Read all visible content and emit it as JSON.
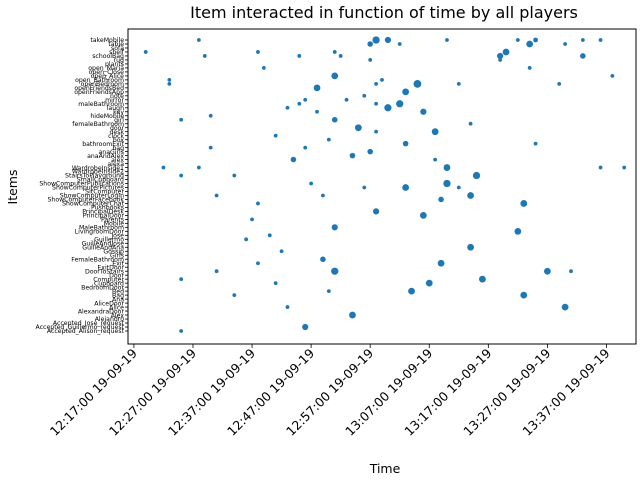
{
  "chart_data": {
    "type": "scatter",
    "title": "Item interacted in function of time by all players",
    "xlabel": "Time",
    "ylabel": "Items",
    "x_ticks": [
      "12:17:00 19-09-19",
      "12:27:00 19-09-19",
      "12:37:00 19-09-19",
      "12:47:00 19-09-19",
      "12:57:00 19-09-19",
      "13:07:00 19-09-19",
      "13:17:00 19-09-19",
      "13:27:00 19-09-19",
      "13:37:00 19-09-19"
    ],
    "xlim": [
      "12:16:00 19-09-19",
      "13:42:00 19-09-19"
    ],
    "grid": false,
    "categories": [
      "takeMobile",
      "table",
      "sofa",
      "shelf",
      "schoolBag",
      "rug",
      "plants",
      "open_Maria",
      "open_Close",
      "open_Alice",
      "open_Bathroom",
      "openBedroom",
      "openFriendsBed",
      "openFriendsApp",
      "note",
      "mirror",
      "maleBathroom",
      "laugh",
      "key",
      "hideMobile",
      "girl",
      "femaleBathroom",
      "door",
      "desk",
      "clock",
      "box",
      "bathroomExit",
      "bag",
      "anaGirls",
      "anaAndAlex",
      "alex",
      "alexa",
      "WardrobeInside1",
      "WardrobeInside2",
      "StairsToPlayground",
      "SmallCupboard",
      "ShowComputerPublications",
      "ShowComputerPictures",
      "SitComputer",
      "ShowComputerLogIn",
      "ShowComputerFacebook",
      "ShowComputerChat",
      "Pushbooks",
      "PrincipalDesk",
      "PrincipalDoor",
      "Parents",
      "Mobile",
      "MaleBathroom",
      "LivingroomDoor",
      "Jose",
      "Guillermo",
      "GuilleAndJose",
      "GuilleAndAna",
      "Gossip",
      "Girls",
      "FemaleBathroom",
      "Exit",
      "ExitDoor",
      "DoorToStairs",
      "Door",
      "Computer",
      "Cupboard",
      "BedroomDoor",
      "Bed",
      "Bag",
      "Ana",
      "AliceDoor",
      "Alice",
      "AlexandraDoor",
      "Alex",
      "Alejandro",
      "Accepted_Jose_request",
      "Accepted_Guillermo_request",
      "Accepted_Alison_request"
    ],
    "points": [
      {
        "time": "12:58:00 19-09-19",
        "item": "takeMobile",
        "count": 6
      },
      {
        "time": "13:00:00 19-09-19",
        "item": "takeMobile",
        "count": 4
      },
      {
        "time": "12:28:00 19-09-19",
        "item": "takeMobile",
        "count": 1
      },
      {
        "time": "13:10:00 19-09-19",
        "item": "takeMobile",
        "count": 1
      },
      {
        "time": "13:22:00 19-09-19",
        "item": "takeMobile",
        "count": 1
      },
      {
        "time": "13:25:00 19-09-19",
        "item": "takeMobile",
        "count": 2
      },
      {
        "time": "13:33:00 19-09-19",
        "item": "takeMobile",
        "count": 1
      },
      {
        "time": "13:36:00 19-09-19",
        "item": "takeMobile",
        "count": 1
      },
      {
        "time": "12:57:00 19-09-19",
        "item": "table",
        "count": 3
      },
      {
        "time": "13:24:00 19-09-19",
        "item": "table",
        "count": 5
      },
      {
        "time": "13:02:00 19-09-19",
        "item": "table",
        "count": 1
      },
      {
        "time": "13:30:00 19-09-19",
        "item": "table",
        "count": 1
      },
      {
        "time": "12:51:00 19-09-19",
        "item": "shelf",
        "count": 1
      },
      {
        "time": "12:19:00 19-09-19",
        "item": "shelf",
        "count": 1
      },
      {
        "time": "12:38:00 19-09-19",
        "item": "shelf",
        "count": 1
      },
      {
        "time": "13:20:00 19-09-19",
        "item": "shelf",
        "count": 5
      },
      {
        "time": "12:45:00 19-09-19",
        "item": "schoolBag",
        "count": 1
      },
      {
        "time": "13:19:00 19-09-19",
        "item": "schoolBag",
        "count": 4
      },
      {
        "time": "13:33:00 19-09-19",
        "item": "schoolBag",
        "count": 3
      },
      {
        "time": "12:52:00 19-09-19",
        "item": "schoolBag",
        "count": 1
      },
      {
        "time": "12:29:00 19-09-19",
        "item": "schoolBag",
        "count": 1
      },
      {
        "time": "12:57:00 19-09-19",
        "item": "rug",
        "count": 1
      },
      {
        "time": "13:19:00 19-09-19",
        "item": "rug",
        "count": 1
      },
      {
        "time": "12:39:00 19-09-19",
        "item": "open_Maria",
        "count": 1
      },
      {
        "time": "13:24:00 19-09-19",
        "item": "open_Maria",
        "count": 1
      },
      {
        "time": "12:51:00 19-09-19",
        "item": "open_Alice",
        "count": 5
      },
      {
        "time": "13:38:00 19-09-19",
        "item": "open_Alice",
        "count": 1
      },
      {
        "time": "12:23:00 19-09-19",
        "item": "open_Bathroom",
        "count": 1
      },
      {
        "time": "12:59:00 19-09-19",
        "item": "open_Bathroom",
        "count": 1
      },
      {
        "time": "13:05:00 19-09-19",
        "item": "openBedroom",
        "count": 7
      },
      {
        "time": "12:23:00 19-09-19",
        "item": "openBedroom",
        "count": 1
      },
      {
        "time": "12:58:00 19-09-19",
        "item": "openBedroom",
        "count": 1
      },
      {
        "time": "13:12:00 19-09-19",
        "item": "openBedroom",
        "count": 1
      },
      {
        "time": "13:29:00 19-09-19",
        "item": "openBedroom",
        "count": 1
      },
      {
        "time": "12:48:00 19-09-19",
        "item": "openFriendsBed",
        "count": 5
      },
      {
        "time": "13:03:00 19-09-19",
        "item": "openFriendsApp",
        "count": 5
      },
      {
        "time": "12:56:00 19-09-19",
        "item": "note",
        "count": 1
      },
      {
        "time": "12:46:00 19-09-19",
        "item": "mirror",
        "count": 1
      },
      {
        "time": "12:53:00 19-09-19",
        "item": "mirror",
        "count": 1
      },
      {
        "time": "13:02:00 19-09-19",
        "item": "maleBathroom",
        "count": 6
      },
      {
        "time": "12:58:00 19-09-19",
        "item": "maleBathroom",
        "count": 1
      },
      {
        "time": "12:45:00 19-09-19",
        "item": "maleBathroom",
        "count": 1
      },
      {
        "time": "13:00:00 19-09-19",
        "item": "laugh",
        "count": 6
      },
      {
        "time": "12:43:00 19-09-19",
        "item": "laugh",
        "count": 1
      },
      {
        "time": "13:06:00 19-09-19",
        "item": "key",
        "count": 4
      },
      {
        "time": "12:48:00 19-09-19",
        "item": "key",
        "count": 1
      },
      {
        "time": "12:30:00 19-09-19",
        "item": "hideMobile",
        "count": 1
      },
      {
        "time": "12:51:00 19-09-19",
        "item": "girl",
        "count": 3
      },
      {
        "time": "12:25:00 19-09-19",
        "item": "girl",
        "count": 1
      },
      {
        "time": "13:14:00 19-09-19",
        "item": "femaleBathroom",
        "count": 1
      },
      {
        "time": "12:55:00 19-09-19",
        "item": "door",
        "count": 5
      },
      {
        "time": "13:08:00 19-09-19",
        "item": "desk",
        "count": 5
      },
      {
        "time": "12:58:00 19-09-19",
        "item": "desk",
        "count": 1
      },
      {
        "time": "12:41:00 19-09-19",
        "item": "clock",
        "count": 1
      },
      {
        "time": "12:50:00 19-09-19",
        "item": "box",
        "count": 1
      },
      {
        "time": "13:03:00 19-09-19",
        "item": "bathroomExit",
        "count": 3
      },
      {
        "time": "13:25:00 19-09-19",
        "item": "bathroomExit",
        "count": 1
      },
      {
        "time": "12:30:00 19-09-19",
        "item": "bag",
        "count": 1
      },
      {
        "time": "12:46:00 19-09-19",
        "item": "bag",
        "count": 1
      },
      {
        "time": "12:57:00 19-09-19",
        "item": "anaGirls",
        "count": 3
      },
      {
        "time": "12:54:00 19-09-19",
        "item": "anaAndAlex",
        "count": 3
      },
      {
        "time": "12:44:00 19-09-19",
        "item": "alex",
        "count": 3
      },
      {
        "time": "13:08:00 19-09-19",
        "item": "alex",
        "count": 1
      },
      {
        "time": "13:10:00 19-09-19",
        "item": "WardrobeInside1",
        "count": 5
      },
      {
        "time": "12:22:00 19-09-19",
        "item": "WardrobeInside1",
        "count": 1
      },
      {
        "time": "12:28:00 19-09-19",
        "item": "WardrobeInside1",
        "count": 1
      },
      {
        "time": "13:36:00 19-09-19",
        "item": "WardrobeInside1",
        "count": 1
      },
      {
        "time": "13:40:00 19-09-19",
        "item": "WardrobeInside1",
        "count": 1
      },
      {
        "time": "13:15:00 19-09-19",
        "item": "StairsToPlayground",
        "count": 6
      },
      {
        "time": "12:34:00 19-09-19",
        "item": "StairsToPlayground",
        "count": 1
      },
      {
        "time": "12:25:00 19-09-19",
        "item": "StairsToPlayground",
        "count": 1
      },
      {
        "time": "13:10:00 19-09-19",
        "item": "ShowComputerPublications",
        "count": 6
      },
      {
        "time": "12:47:00 19-09-19",
        "item": "ShowComputerPublications",
        "count": 1
      },
      {
        "time": "13:03:00 19-09-19",
        "item": "ShowComputerPictures",
        "count": 5
      },
      {
        "time": "12:56:00 19-09-19",
        "item": "ShowComputerPictures",
        "count": 1
      },
      {
        "time": "13:12:00 19-09-19",
        "item": "ShowComputerPictures",
        "count": 1
      },
      {
        "time": "13:14:00 19-09-19",
        "item": "ShowComputerLogIn",
        "count": 5
      },
      {
        "time": "12:31:00 19-09-19",
        "item": "ShowComputerLogIn",
        "count": 1
      },
      {
        "time": "12:49:00 19-09-19",
        "item": "ShowComputerLogIn",
        "count": 1
      },
      {
        "time": "13:09:00 19-09-19",
        "item": "ShowComputerFacebook",
        "count": 3
      },
      {
        "time": "13:23:00 19-09-19",
        "item": "ShowComputerChat",
        "count": 5
      },
      {
        "time": "12:38:00 19-09-19",
        "item": "ShowComputerChat",
        "count": 1
      },
      {
        "time": "12:58:00 19-09-19",
        "item": "PrincipalDesk",
        "count": 4
      },
      {
        "time": "13:06:00 19-09-19",
        "item": "PrincipalDoor",
        "count": 5
      },
      {
        "time": "12:37:00 19-09-19",
        "item": "Parents",
        "count": 1
      },
      {
        "time": "12:51:00 19-09-19",
        "item": "MaleBathroom",
        "count": 4
      },
      {
        "time": "13:22:00 19-09-19",
        "item": "LivingroomDoor",
        "count": 5
      },
      {
        "time": "12:40:00 19-09-19",
        "item": "Jose",
        "count": 1
      },
      {
        "time": "12:36:00 19-09-19",
        "item": "Guillermo",
        "count": 1
      },
      {
        "time": "13:14:00 19-09-19",
        "item": "GuilleAndAna",
        "count": 5
      },
      {
        "time": "12:42:00 19-09-19",
        "item": "Gossip",
        "count": 1
      },
      {
        "time": "12:49:00 19-09-19",
        "item": "FemaleBathroom",
        "count": 3
      },
      {
        "time": "13:09:00 19-09-19",
        "item": "Exit",
        "count": 5
      },
      {
        "time": "12:38:00 19-09-19",
        "item": "Exit",
        "count": 1
      },
      {
        "time": "12:51:00 19-09-19",
        "item": "DoorToStairs",
        "count": 6
      },
      {
        "time": "13:27:00 19-09-19",
        "item": "DoorToStairs",
        "count": 5
      },
      {
        "time": "12:31:00 19-09-19",
        "item": "DoorToStairs",
        "count": 1
      },
      {
        "time": "13:31:00 19-09-19",
        "item": "DoorToStairs",
        "count": 1
      },
      {
        "time": "13:16:00 19-09-19",
        "item": "Computer",
        "count": 5
      },
      {
        "time": "12:25:00 19-09-19",
        "item": "Computer",
        "count": 1
      },
      {
        "time": "13:07:00 19-09-19",
        "item": "Cupboard",
        "count": 5
      },
      {
        "time": "12:41:00 19-09-19",
        "item": "Cupboard",
        "count": 1
      },
      {
        "time": "13:04:00 19-09-19",
        "item": "Bed",
        "count": 5
      },
      {
        "time": "12:50:00 19-09-19",
        "item": "Bed",
        "count": 1
      },
      {
        "time": "13:23:00 19-09-19",
        "item": "Bag",
        "count": 5
      },
      {
        "time": "12:34:00 19-09-19",
        "item": "Bag",
        "count": 1
      },
      {
        "time": "13:30:00 19-09-19",
        "item": "Alice",
        "count": 5
      },
      {
        "time": "12:43:00 19-09-19",
        "item": "Alice",
        "count": 1
      },
      {
        "time": "12:54:00 19-09-19",
        "item": "Alex",
        "count": 5
      },
      {
        "time": "12:46:00 19-09-19",
        "item": "Accepted_Guillermo_request",
        "count": 4
      },
      {
        "time": "12:25:00 19-09-19",
        "item": "Accepted_Alison_request",
        "count": 1
      }
    ]
  }
}
